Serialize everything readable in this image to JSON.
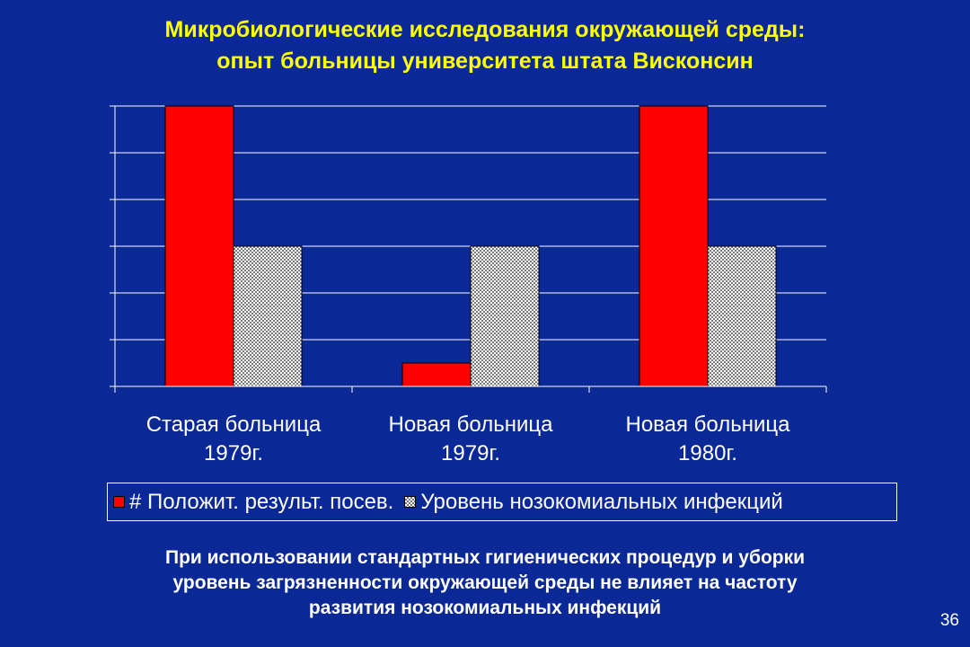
{
  "slide": {
    "title_lines": [
      "Микробиологические исследования окружающей среды:",
      "опыт больницы университета штата Висконсин"
    ],
    "footer_lines": [
      "При использовании стандартных гигиенических процедур и уборки",
      "уровень загрязненности окружающей среды не влияет на частоту",
      "развития нозокомиальных инфекций"
    ],
    "page_number": "36"
  },
  "chart_data": {
    "type": "bar",
    "categories": [
      [
        "Старая больница",
        "1979г."
      ],
      [
        "Новая больница",
        "1979г."
      ],
      [
        "Новая больница",
        "1980г."
      ]
    ],
    "series": [
      {
        "name": "# Положит. результ. посев.",
        "color": "#ff0000",
        "pattern": "solid",
        "values": [
          6.0,
          0.5,
          6.0
        ]
      },
      {
        "name": "Уровень нозокомиальных инфекций",
        "color": "#e6e6e6",
        "pattern": "checkered",
        "values": [
          3.0,
          3.0,
          3.0
        ]
      }
    ],
    "ylim": [
      0,
      6
    ],
    "ytick_step": 1,
    "y_tick_labels_shown": false,
    "grid": true,
    "legend_position": "bottom",
    "colors": {
      "background": "#0a2896",
      "axis": "#ffffff",
      "gridline": "#ffffff"
    }
  }
}
